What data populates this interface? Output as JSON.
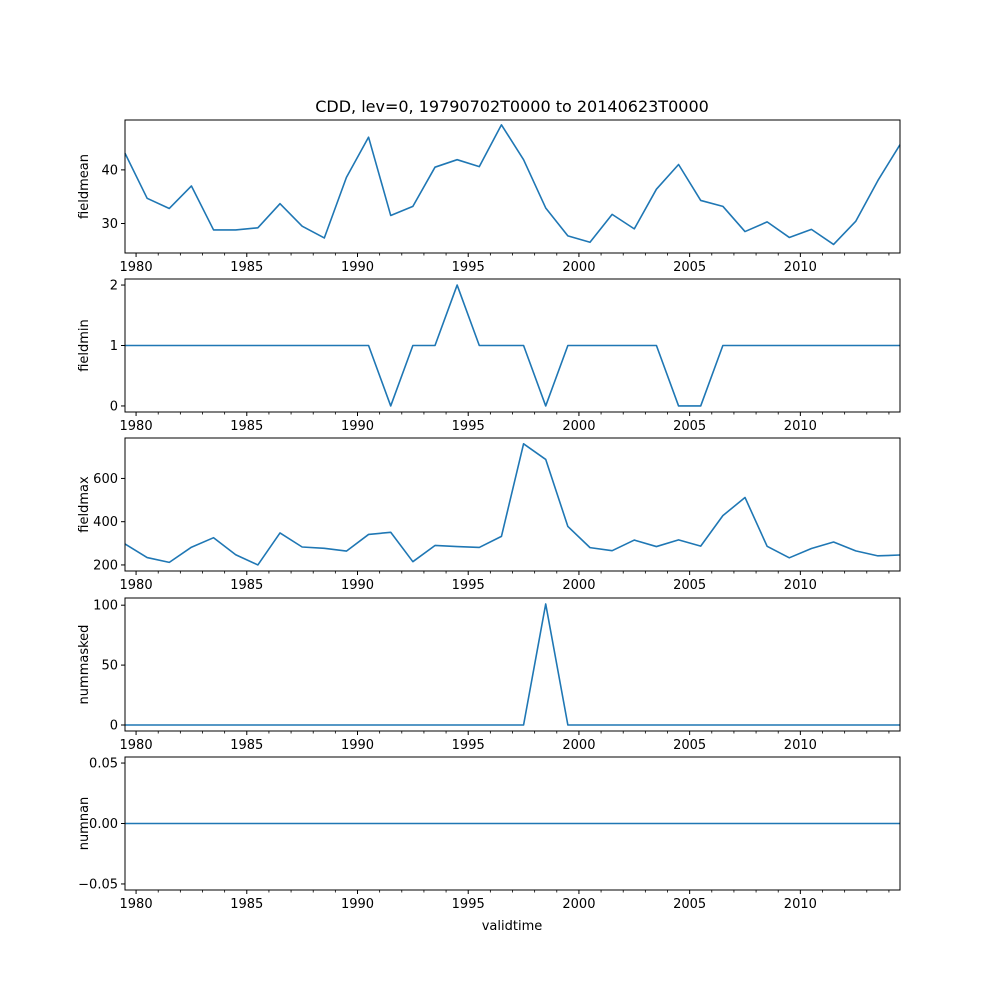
{
  "title": "CDD, lev=0, 19790702T0000 to 20140623T0000",
  "xlabel": "validtime",
  "chart_data": {
    "type": "line",
    "title": "CDD, lev=0, 19790702T0000 to 20140623T0000",
    "xlabel": "validtime",
    "x": [
      1979.5,
      1980.5,
      1981.5,
      1982.5,
      1983.5,
      1984.5,
      1985.5,
      1986.5,
      1987.5,
      1988.5,
      1989.5,
      1990.5,
      1991.5,
      1992.5,
      1993.5,
      1994.5,
      1995.5,
      1996.5,
      1997.5,
      1998.5,
      1999.5,
      2000.5,
      2001.5,
      2002.5,
      2003.5,
      2004.5,
      2005.5,
      2006.5,
      2007.5,
      2008.5,
      2009.5,
      2010.5,
      2011.5,
      2012.5,
      2013.5,
      2014.5
    ],
    "xlim": [
      1979.5,
      2014.5
    ],
    "xticks": [
      1980,
      1985,
      1990,
      1995,
      2000,
      2005,
      2010
    ],
    "color": "#1f77b4",
    "subplots": [
      {
        "ylabel": "fieldmean",
        "ylim": [
          24.5,
          49.3
        ],
        "yticks": [
          "30",
          "40"
        ],
        "ytick_values": [
          30,
          40
        ],
        "values": [
          43.1,
          34.7,
          32.8,
          37.0,
          28.8,
          28.8,
          29.2,
          33.7,
          29.5,
          27.3,
          38.6,
          46.1,
          31.5,
          33.2,
          40.5,
          41.9,
          40.6,
          48.4,
          41.9,
          32.9,
          27.7,
          26.5,
          31.7,
          29.0,
          36.4,
          41.0,
          34.3,
          33.2,
          28.5,
          30.3,
          27.4,
          28.9,
          26.1,
          30.4,
          38.0,
          44.7
        ]
      },
      {
        "ylabel": "fieldmin",
        "ylim": [
          -0.1,
          2.1
        ],
        "yticks": [
          "0",
          "1",
          "2"
        ],
        "ytick_values": [
          0,
          1,
          2
        ],
        "values": [
          1,
          1,
          1,
          1,
          1,
          1,
          1,
          1,
          1,
          1,
          1,
          1,
          0,
          1,
          1,
          2,
          1,
          1,
          1,
          0,
          1,
          1,
          1,
          1,
          1,
          0,
          0,
          1,
          1,
          1,
          1,
          1,
          1,
          1,
          1,
          1
        ]
      },
      {
        "ylabel": "fieldmax",
        "ylim": [
          172,
          787
        ],
        "yticks": [
          "200",
          "400",
          "600"
        ],
        "ytick_values": [
          200,
          400,
          600
        ],
        "values": [
          297,
          234,
          212,
          282,
          326,
          247,
          200,
          348,
          283,
          277,
          264,
          341,
          351,
          215,
          290,
          285,
          281,
          332,
          760,
          688,
          378,
          280,
          266,
          315,
          285,
          316,
          287,
          428,
          512,
          286,
          233,
          276,
          306,
          265,
          242,
          246
        ]
      },
      {
        "ylabel": "nummasked",
        "ylim": [
          -5,
          106
        ],
        "yticks": [
          "0",
          "50",
          "100"
        ],
        "ytick_values": [
          0,
          50,
          100
        ],
        "values": [
          0,
          0,
          0,
          0,
          0,
          0,
          0,
          0,
          0,
          0,
          0,
          0,
          0,
          0,
          0,
          0,
          0,
          0,
          0,
          101,
          0,
          0,
          0,
          0,
          0,
          0,
          0,
          0,
          0,
          0,
          0,
          0,
          0,
          0,
          0,
          0
        ]
      },
      {
        "ylabel": "numnan",
        "ylim": [
          -0.055,
          0.055
        ],
        "yticks": [
          "−0.05",
          "0.00",
          "0.05"
        ],
        "ytick_values": [
          -0.05,
          0,
          0.05
        ],
        "values": [
          0,
          0,
          0,
          0,
          0,
          0,
          0,
          0,
          0,
          0,
          0,
          0,
          0,
          0,
          0,
          0,
          0,
          0,
          0,
          0,
          0,
          0,
          0,
          0,
          0,
          0,
          0,
          0,
          0,
          0,
          0,
          0,
          0,
          0,
          0,
          0
        ]
      }
    ]
  }
}
